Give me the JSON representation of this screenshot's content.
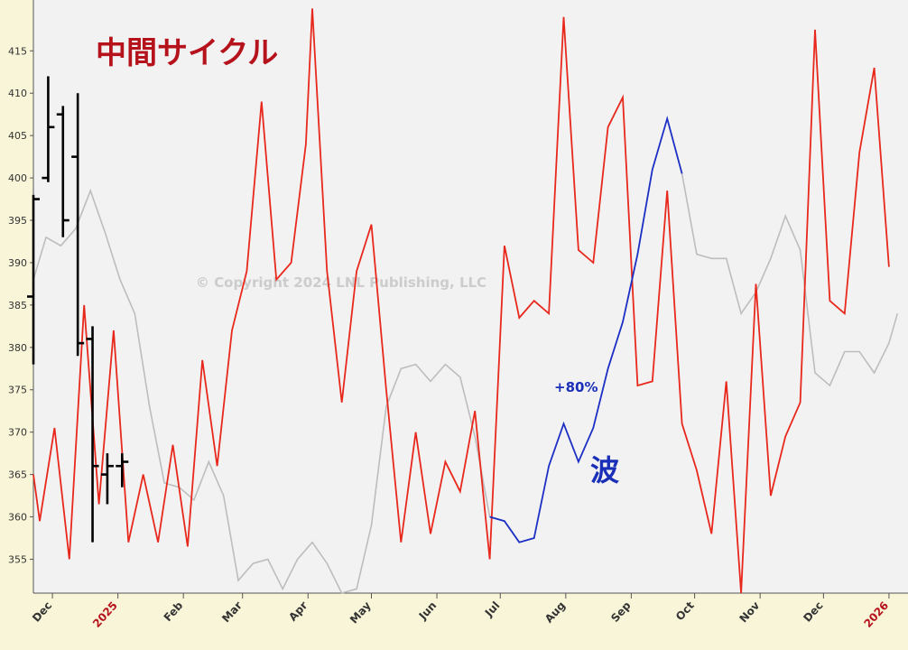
{
  "chart_data": {
    "type": "line",
    "title": "中間サイクル",
    "watermark": "© Copyright 2024 LNL Publishing, LLC",
    "annotations": [
      {
        "text": "+80%",
        "color": "#1a2fb8"
      },
      {
        "text": "波",
        "color": "#1a2fb8"
      }
    ],
    "ylim": [
      351,
      421
    ],
    "yticks": [
      355,
      360,
      365,
      370,
      375,
      380,
      385,
      390,
      395,
      400,
      405,
      410,
      415
    ],
    "xlim": [
      "2024-11-22",
      "2026-01-10"
    ],
    "xticks": [
      {
        "date": "2024-12-01",
        "label": "Dec",
        "year": false
      },
      {
        "date": "2025-01-01",
        "label": "2025",
        "year": true
      },
      {
        "date": "2025-02-01",
        "label": "Feb",
        "year": false
      },
      {
        "date": "2025-03-01",
        "label": "Mar",
        "year": false
      },
      {
        "date": "2025-04-01",
        "label": "Apr",
        "year": false
      },
      {
        "date": "2025-05-01",
        "label": "May",
        "year": false
      },
      {
        "date": "2025-06-01",
        "label": "Jun",
        "year": false
      },
      {
        "date": "2025-07-01",
        "label": "Jul",
        "year": false
      },
      {
        "date": "2025-08-01",
        "label": "Aug",
        "year": false
      },
      {
        "date": "2025-09-01",
        "label": "Sep",
        "year": false
      },
      {
        "date": "2025-10-01",
        "label": "Oct",
        "year": false
      },
      {
        "date": "2025-11-01",
        "label": "Nov",
        "year": false
      },
      {
        "date": "2025-12-01",
        "label": "Dec",
        "year": false
      },
      {
        "date": "2026-01-01",
        "label": "2026",
        "year": true
      }
    ],
    "colors": {
      "red": "#e8281c",
      "gray": "#bdbdbd",
      "blue": "#1c2fc4",
      "bars": "#000000",
      "title": "#b5121b",
      "plot_bg": "#f2f2f2",
      "frame_bg": "#f8f5d8"
    },
    "series": [
      {
        "key": "red",
        "color": "#e8281c",
        "points": [
          [
            "2024-11-22",
            365.0
          ],
          [
            "2024-11-25",
            359.5
          ],
          [
            "2024-12-02",
            370.5
          ],
          [
            "2024-12-09",
            355.0
          ],
          [
            "2024-12-16",
            385.0
          ],
          [
            "2024-12-23",
            361.5
          ],
          [
            "2024-12-30",
            382.0
          ],
          [
            "2025-01-06",
            357.0
          ],
          [
            "2025-01-13",
            365.0
          ],
          [
            "2025-01-20",
            357.0
          ],
          [
            "2025-01-27",
            368.5
          ],
          [
            "2025-02-03",
            356.5
          ],
          [
            "2025-02-10",
            378.5
          ],
          [
            "2025-02-17",
            366.0
          ],
          [
            "2025-02-24",
            382.0
          ],
          [
            "2025-03-03",
            389.0
          ],
          [
            "2025-03-10",
            409.0
          ],
          [
            "2025-03-17",
            388.0
          ],
          [
            "2025-03-24",
            390.0
          ],
          [
            "2025-03-31",
            404.0
          ],
          [
            "2025-04-03",
            420.0
          ],
          [
            "2025-04-10",
            389.0
          ],
          [
            "2025-04-17",
            373.5
          ],
          [
            "2025-04-24",
            389.0
          ],
          [
            "2025-05-01",
            394.5
          ],
          [
            "2025-05-08",
            375.0
          ],
          [
            "2025-05-15",
            357.0
          ],
          [
            "2025-05-22",
            370.0
          ],
          [
            "2025-05-29",
            358.0
          ],
          [
            "2025-06-05",
            366.5
          ],
          [
            "2025-06-12",
            363.0
          ],
          [
            "2025-06-19",
            372.5
          ],
          [
            "2025-06-26",
            355.0
          ],
          [
            "2025-07-03",
            392.0
          ],
          [
            "2025-07-10",
            383.5
          ],
          [
            "2025-07-17",
            385.5
          ],
          [
            "2025-07-24",
            384.0
          ],
          [
            "2025-07-31",
            419.0
          ],
          [
            "2025-08-07",
            391.5
          ],
          [
            "2025-08-14",
            390.0
          ],
          [
            "2025-08-21",
            406.0
          ],
          [
            "2025-08-28",
            409.5
          ],
          [
            "2025-09-04",
            375.5
          ],
          [
            "2025-09-11",
            376.0
          ],
          [
            "2025-09-18",
            398.5
          ],
          [
            "2025-09-25",
            371.0
          ],
          [
            "2025-10-02",
            365.5
          ],
          [
            "2025-10-09",
            358.0
          ],
          [
            "2025-10-16",
            376.0
          ],
          [
            "2025-10-23",
            351.0
          ],
          [
            "2025-10-30",
            387.5
          ],
          [
            "2025-11-06",
            362.5
          ],
          [
            "2025-11-13",
            369.5
          ],
          [
            "2025-11-20",
            373.5
          ],
          [
            "2025-11-27",
            417.5
          ],
          [
            "2025-12-04",
            385.5
          ],
          [
            "2025-12-11",
            384.0
          ],
          [
            "2025-12-18",
            403.0
          ],
          [
            "2025-12-25",
            413.0
          ],
          [
            "2026-01-01",
            389.5
          ]
        ]
      },
      {
        "key": "gray",
        "color": "#bdbdbd",
        "points": [
          [
            "2024-11-22",
            388.0
          ],
          [
            "2024-11-28",
            393.0
          ],
          [
            "2024-12-05",
            392.0
          ],
          [
            "2024-12-12",
            394.0
          ],
          [
            "2024-12-19",
            398.5
          ],
          [
            "2024-12-26",
            393.5
          ],
          [
            "2025-01-02",
            388.0
          ],
          [
            "2025-01-09",
            384.0
          ],
          [
            "2025-01-16",
            373.0
          ],
          [
            "2025-01-23",
            364.0
          ],
          [
            "2025-01-30",
            363.5
          ],
          [
            "2025-02-06",
            362.0
          ],
          [
            "2025-02-13",
            366.5
          ],
          [
            "2025-02-20",
            362.5
          ],
          [
            "2025-02-27",
            352.5
          ],
          [
            "2025-03-06",
            354.5
          ],
          [
            "2025-03-13",
            355.0
          ],
          [
            "2025-03-20",
            351.5
          ],
          [
            "2025-03-27",
            355.0
          ],
          [
            "2025-04-03",
            357.0
          ],
          [
            "2025-04-10",
            354.5
          ],
          [
            "2025-04-17",
            351.0
          ],
          [
            "2025-04-24",
            351.5
          ],
          [
            "2025-05-01",
            359.0
          ],
          [
            "2025-05-08",
            373.0
          ],
          [
            "2025-05-15",
            377.5
          ],
          [
            "2025-05-22",
            378.0
          ],
          [
            "2025-05-29",
            376.0
          ],
          [
            "2025-06-05",
            378.0
          ],
          [
            "2025-06-12",
            376.5
          ],
          [
            "2025-06-19",
            369.5
          ],
          [
            "2025-06-26",
            360.0
          ]
        ]
      },
      {
        "key": "gray2",
        "color": "#bdbdbd",
        "points": [
          [
            "2025-09-25",
            400.5
          ],
          [
            "2025-10-02",
            391.0
          ],
          [
            "2025-10-09",
            390.5
          ],
          [
            "2025-10-16",
            390.5
          ],
          [
            "2025-10-23",
            384.0
          ],
          [
            "2025-10-30",
            386.5
          ],
          [
            "2025-11-06",
            390.5
          ],
          [
            "2025-11-13",
            395.5
          ],
          [
            "2025-11-20",
            391.5
          ],
          [
            "2025-11-27",
            377.0
          ],
          [
            "2025-12-04",
            375.5
          ],
          [
            "2025-12-11",
            379.5
          ],
          [
            "2025-12-18",
            379.5
          ],
          [
            "2025-12-25",
            377.0
          ],
          [
            "2026-01-01",
            380.5
          ],
          [
            "2026-01-05",
            384.0
          ]
        ]
      },
      {
        "key": "blue",
        "color": "#1c2fc4",
        "points": [
          [
            "2025-06-26",
            360.0
          ],
          [
            "2025-07-03",
            359.5
          ],
          [
            "2025-07-10",
            357.0
          ],
          [
            "2025-07-17",
            357.5
          ],
          [
            "2025-07-24",
            366.0
          ],
          [
            "2025-07-31",
            371.0
          ],
          [
            "2025-08-07",
            366.5
          ],
          [
            "2025-08-14",
            370.5
          ],
          [
            "2025-08-21",
            377.5
          ],
          [
            "2025-08-28",
            383.0
          ],
          [
            "2025-09-04",
            391.0
          ],
          [
            "2025-09-11",
            401.0
          ],
          [
            "2025-09-18",
            407.0
          ],
          [
            "2025-09-25",
            400.5
          ]
        ]
      }
    ],
    "ohlc": [
      {
        "date": "2024-11-22",
        "open": 386.0,
        "high": 398.0,
        "low": 378.0,
        "close": 397.5
      },
      {
        "date": "2024-11-29",
        "open": 400.0,
        "high": 412.0,
        "low": 399.5,
        "close": 406.0
      },
      {
        "date": "2024-12-06",
        "open": 407.5,
        "high": 408.5,
        "low": 393.0,
        "close": 395.0
      },
      {
        "date": "2024-12-13",
        "open": 402.5,
        "high": 410.0,
        "low": 379.0,
        "close": 380.5
      },
      {
        "date": "2024-12-20",
        "open": 381.0,
        "high": 382.5,
        "low": 357.0,
        "close": 366.0
      },
      {
        "date": "2024-12-27",
        "open": 365.0,
        "high": 367.5,
        "low": 361.5,
        "close": 366.0
      },
      {
        "date": "2025-01-03",
        "open": 366.0,
        "high": 367.5,
        "low": 363.5,
        "close": 366.5
      }
    ]
  }
}
